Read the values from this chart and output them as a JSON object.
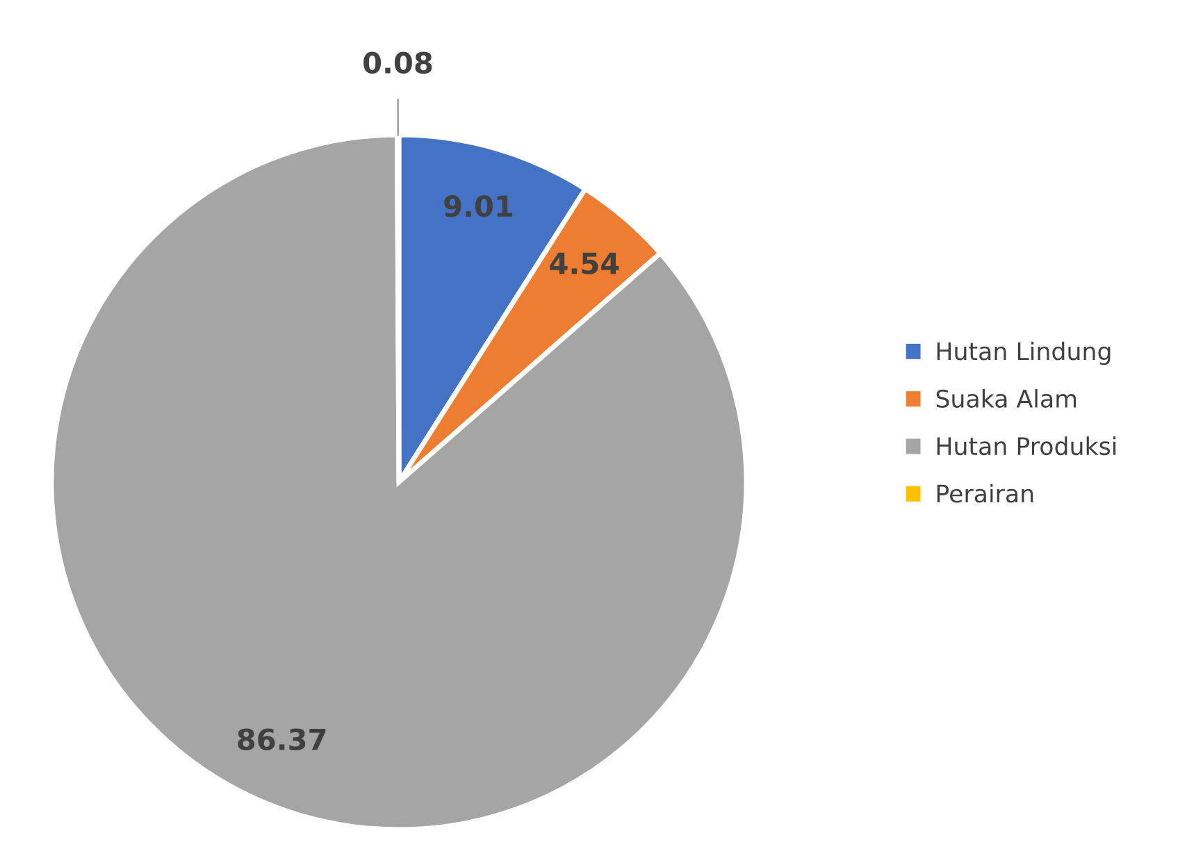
{
  "chart_data": {
    "type": "pie",
    "categories": [
      "Hutan Lindung",
      "Suaka Alam",
      "Hutan Produksi",
      "Perairan"
    ],
    "values": [
      9.01,
      4.54,
      86.37,
      0.08
    ],
    "colors": [
      "#4472c4",
      "#ed7d31",
      "#a5a5a5",
      "#ffc000"
    ],
    "data_labels": true,
    "legend": "right"
  }
}
